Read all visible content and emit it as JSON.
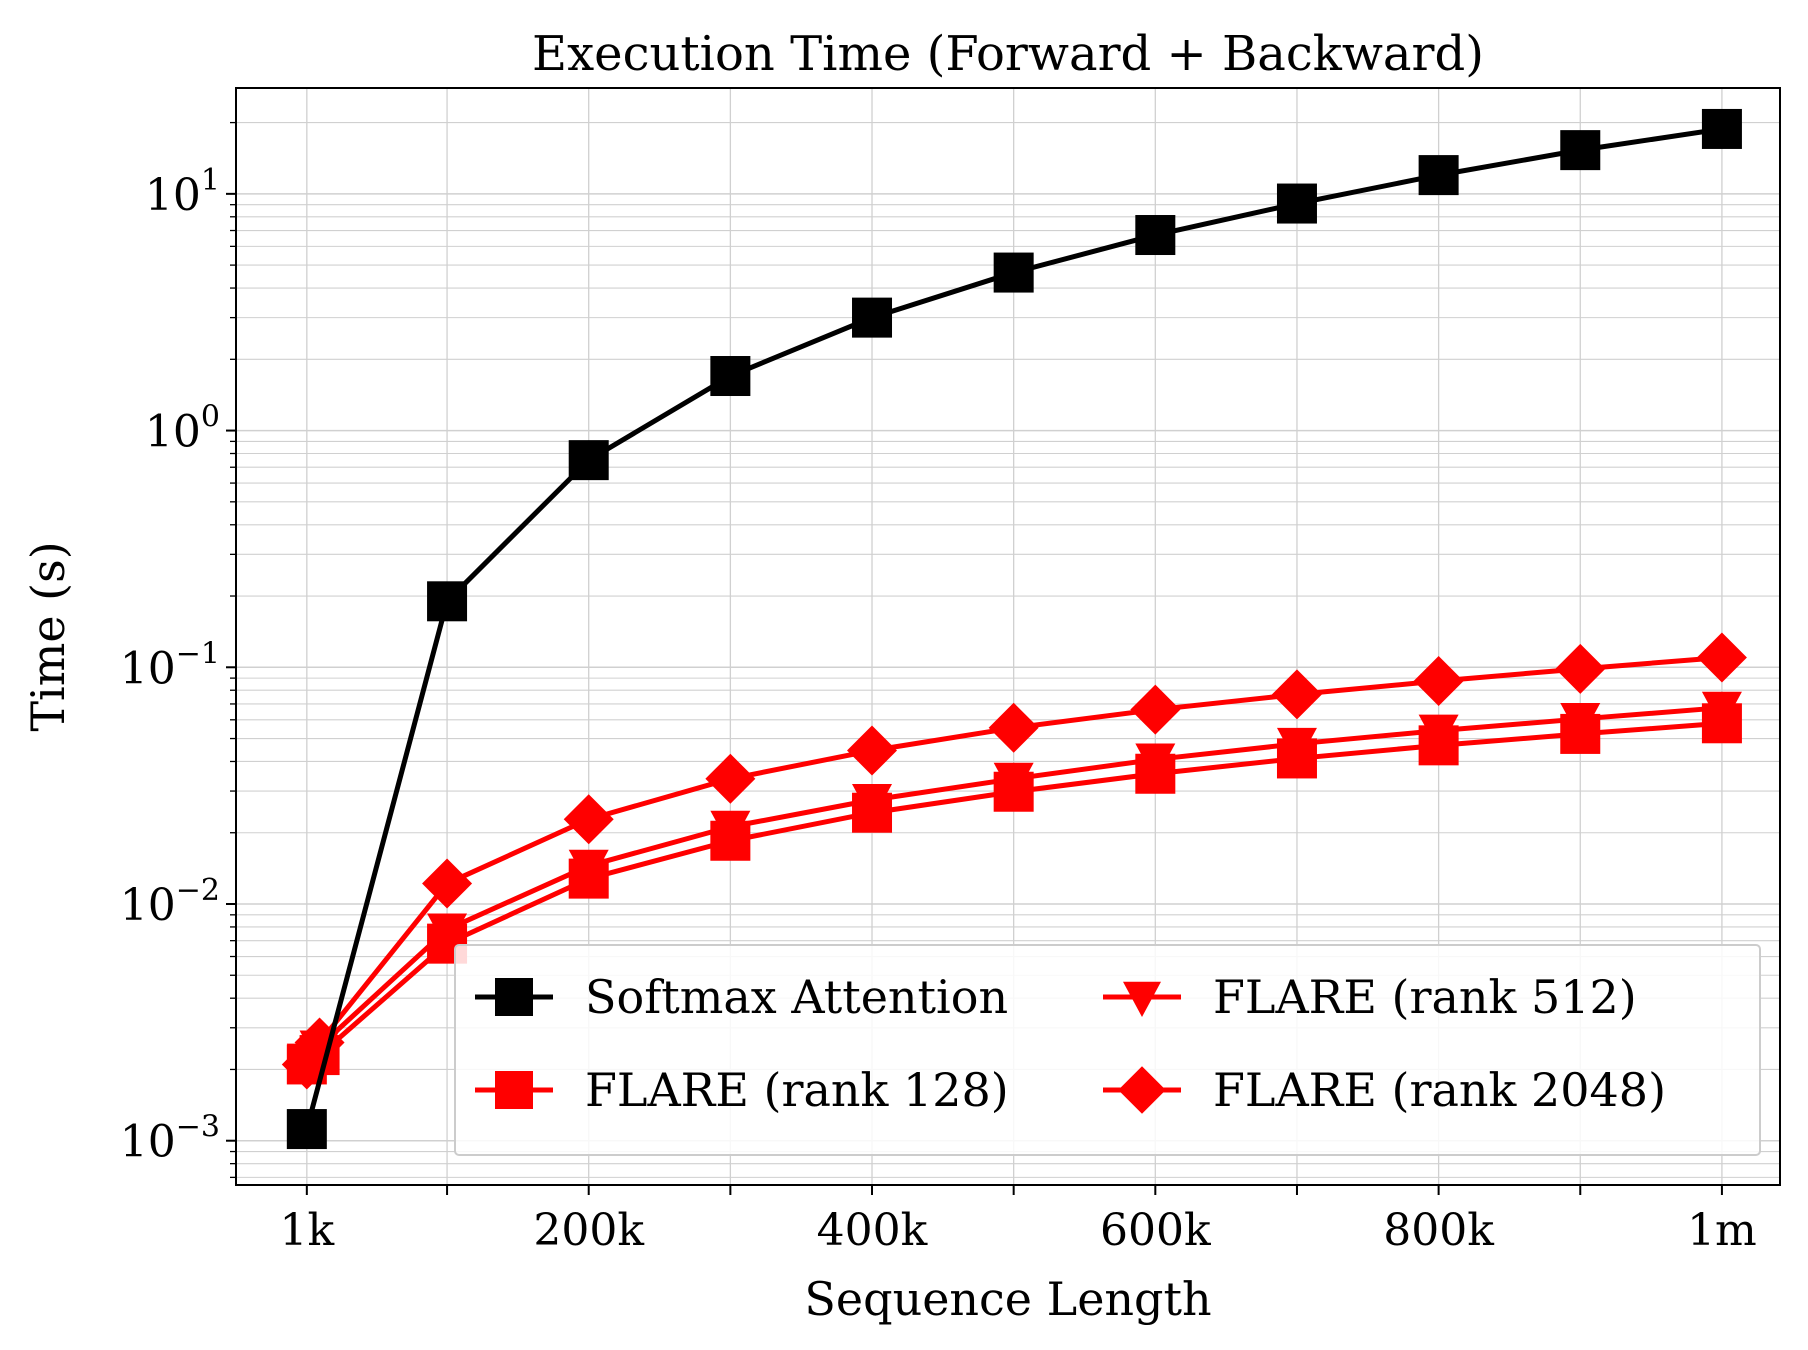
{
  "chart_data": {
    "type": "line",
    "title": "Execution Time (Forward + Backward)",
    "xlabel": "Sequence Length",
    "ylabel": "Time (s)",
    "yscale": "log",
    "xlim": [
      -49000,
      1041000
    ],
    "ylim": [
      0.00065,
      28
    ],
    "x_ticks": [
      {
        "value": 1000,
        "label": "1k"
      },
      {
        "value": 200000,
        "label": "200k"
      },
      {
        "value": 400000,
        "label": "400k"
      },
      {
        "value": 600000,
        "label": "600k"
      },
      {
        "value": 800000,
        "label": "800k"
      },
      {
        "value": 1000000,
        "label": "1m"
      }
    ],
    "x_minor_ticks": [
      100000,
      300000,
      500000,
      700000,
      900000
    ],
    "y_ticks": [
      {
        "value": 0.001,
        "base": "10",
        "exp": "−3"
      },
      {
        "value": 0.01,
        "base": "10",
        "exp": "−2"
      },
      {
        "value": 0.1,
        "base": "10",
        "exp": "−1"
      },
      {
        "value": 1,
        "base": "10",
        "exp": "0"
      },
      {
        "value": 10,
        "base": "10",
        "exp": "1"
      }
    ],
    "grid": true,
    "legend_position": "lower-right",
    "x": [
      1000,
      10000,
      100000,
      200000,
      300000,
      400000,
      500000,
      600000,
      700000,
      800000,
      900000,
      1000000
    ],
    "series": [
      {
        "name": "Softmax Attention",
        "color": "#000000",
        "marker": "square",
        "x": [
          1000,
          100000,
          200000,
          300000,
          400000,
          500000,
          600000,
          700000,
          800000,
          900000,
          1000000
        ],
        "values": [
          0.00112,
          0.19,
          0.75,
          1.7,
          3.0,
          4.65,
          6.7,
          9.1,
          12.0,
          15.3,
          18.8
        ]
      },
      {
        "name": "FLARE (rank 128)",
        "color": "#ff0000",
        "marker": "square",
        "x": [
          1000,
          10000,
          100000,
          200000,
          300000,
          400000,
          500000,
          600000,
          700000,
          800000,
          900000,
          1000000
        ],
        "values": [
          0.0021,
          0.0023,
          0.0068,
          0.0128,
          0.0185,
          0.0243,
          0.0298,
          0.0355,
          0.0412,
          0.0468,
          0.0523,
          0.058
        ]
      },
      {
        "name": "FLARE (rank 512)",
        "color": "#ff0000",
        "marker": "triangle-down",
        "x": [
          1000,
          10000,
          100000,
          200000,
          300000,
          400000,
          500000,
          600000,
          700000,
          800000,
          900000,
          1000000
        ],
        "values": [
          0.0022,
          0.0025,
          0.0078,
          0.0145,
          0.0212,
          0.0275,
          0.0338,
          0.0408,
          0.0475,
          0.054,
          0.0605,
          0.0675
        ]
      },
      {
        "name": "FLARE (rank 2048)",
        "color": "#ff0000",
        "marker": "diamond",
        "x": [
          1000,
          10000,
          100000,
          200000,
          300000,
          400000,
          500000,
          600000,
          700000,
          800000,
          900000,
          1000000
        ],
        "values": [
          0.0021,
          0.0026,
          0.0122,
          0.0228,
          0.0338,
          0.0445,
          0.0555,
          0.0662,
          0.0768,
          0.0875,
          0.0985,
          0.11
        ]
      }
    ],
    "legend_order": [
      0,
      2,
      1,
      3
    ]
  }
}
